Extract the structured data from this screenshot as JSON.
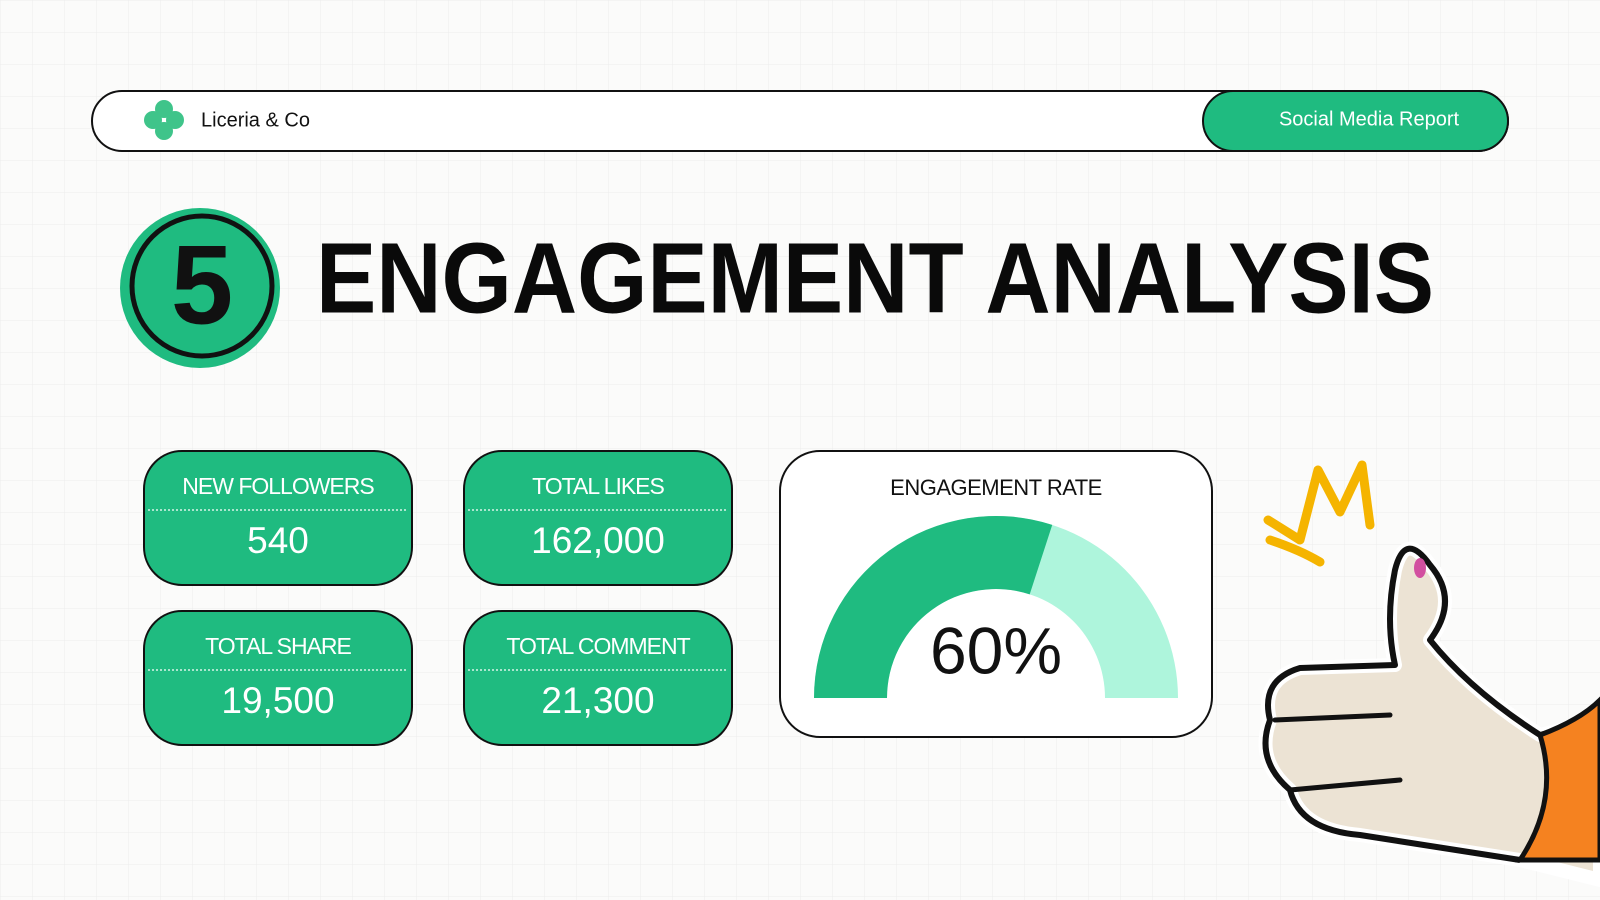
{
  "header": {
    "brand": "Liceria & Co",
    "report": "Social Media Report"
  },
  "section": {
    "number": "5",
    "title": "ENGAGEMENT ANALYSIS"
  },
  "stats": [
    {
      "label": "NEW FOLLOWERS",
      "value": "540"
    },
    {
      "label": "TOTAL LIKES",
      "value": "162,000"
    },
    {
      "label": "TOTAL SHARE",
      "value": "19,500"
    },
    {
      "label": "TOTAL COMMENT",
      "value": "21,300"
    }
  ],
  "chart_data": {
    "type": "gauge",
    "title": "ENGAGEMENT RATE",
    "values": [
      60
    ],
    "value_labels": [
      "60%"
    ],
    "ylim": [
      0,
      100
    ],
    "color": "#1fbb80",
    "track_color": "#aef5dc"
  }
}
